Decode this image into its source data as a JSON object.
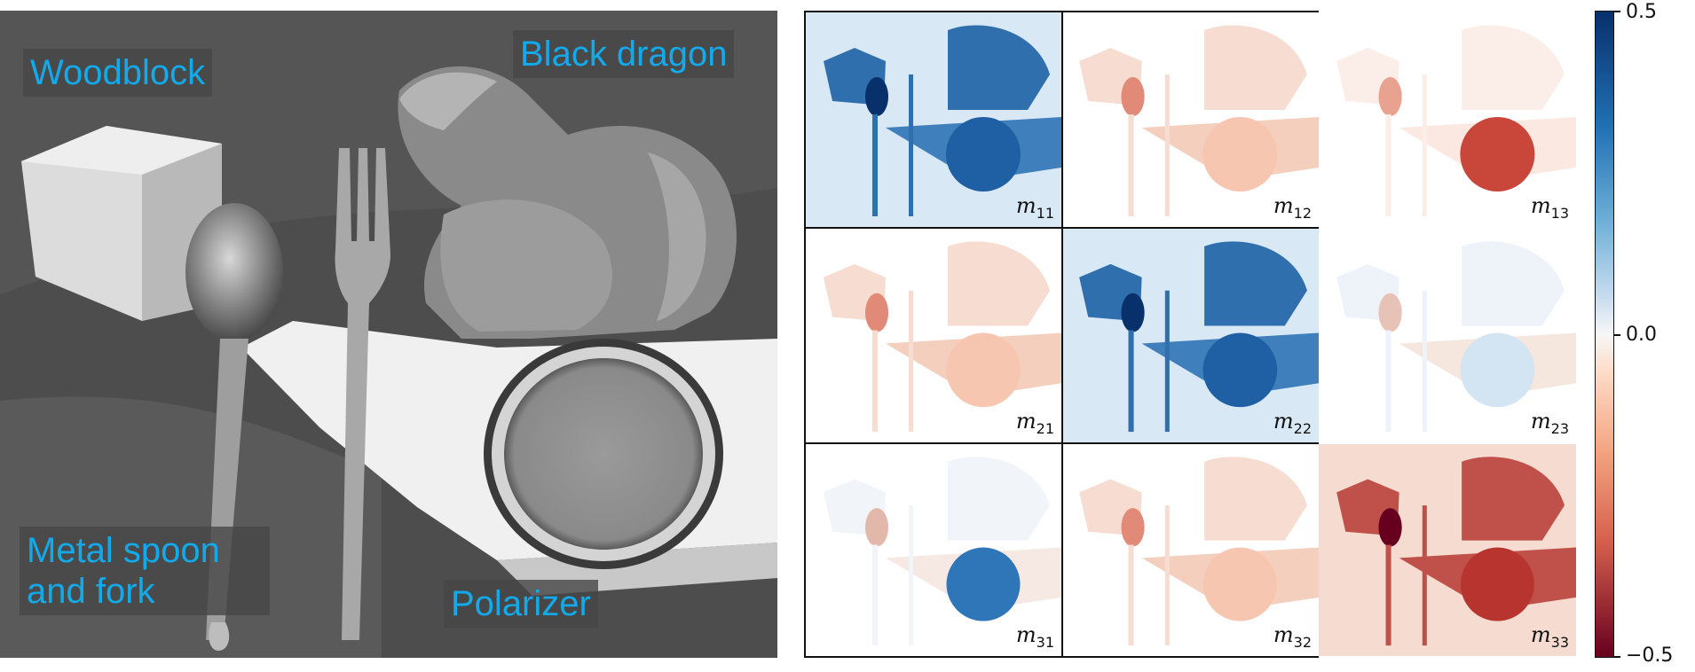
{
  "labels": {
    "woodblock": "Woodblock",
    "dragon": "Black dragon",
    "spoon_fork": "Metal spoon and fork",
    "polarizer": "Polarizer"
  },
  "grid": {
    "cells": [
      {
        "sym": "m",
        "sub": "11",
        "tone": "blue-strong"
      },
      {
        "sym": "m",
        "sub": "12",
        "tone": "red-faint"
      },
      {
        "sym": "m",
        "sub": "13",
        "tone": "red-disk"
      },
      {
        "sym": "m",
        "sub": "21",
        "tone": "red-faint"
      },
      {
        "sym": "m",
        "sub": "22",
        "tone": "blue-strong"
      },
      {
        "sym": "m",
        "sub": "23",
        "tone": "blue-faint"
      },
      {
        "sym": "m",
        "sub": "31",
        "tone": "blue-disk"
      },
      {
        "sym": "m",
        "sub": "32",
        "tone": "red-faint"
      },
      {
        "sym": "m",
        "sub": "33",
        "tone": "red-strong"
      }
    ]
  },
  "colorbar": {
    "max": "0.5",
    "mid": "0.0",
    "min": "−0.5",
    "colors": {
      "pos": "#08306b",
      "zero": "#f7f7f7",
      "neg": "#67001f"
    }
  },
  "colors": {
    "label_text": "#12aaea"
  }
}
